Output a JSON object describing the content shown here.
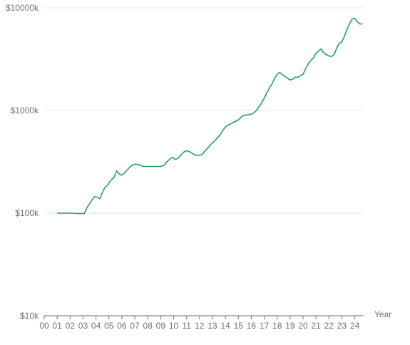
{
  "chart_data": {
    "type": "line",
    "title": "",
    "xlabel": "Year",
    "ylabel": "",
    "yscale": "log",
    "ylim": [
      10,
      10000
    ],
    "xlim": [
      0,
      24.6
    ],
    "grid": "horizontal",
    "colors": {
      "line": "#27a35a",
      "grid": "#e6e6e6",
      "axis": "#6e7079"
    },
    "y_ticks": [
      {
        "value": 10,
        "label": "$10k"
      },
      {
        "value": 100,
        "label": "$100k"
      },
      {
        "value": 1000,
        "label": "$1000k"
      },
      {
        "value": 10000,
        "label": "$10000k"
      }
    ],
    "x_ticks": [
      "00",
      "01",
      "02",
      "03",
      "04",
      "05",
      "06",
      "07",
      "08",
      "09",
      "10",
      "11",
      "12",
      "13",
      "14",
      "15",
      "16",
      "17",
      "18",
      "19",
      "20",
      "21",
      "22",
      "23",
      "24"
    ],
    "series": [
      {
        "values": [
          [
            1.0,
            100
          ],
          [
            2.0,
            100
          ],
          [
            2.6,
            99
          ],
          [
            3.1,
            99
          ],
          [
            3.3,
            113
          ],
          [
            3.5,
            123
          ],
          [
            3.7,
            135
          ],
          [
            3.9,
            145
          ],
          [
            4.1,
            143
          ],
          [
            4.3,
            138
          ],
          [
            4.5,
            160
          ],
          [
            4.7,
            178
          ],
          [
            4.9,
            188
          ],
          [
            5.1,
            205
          ],
          [
            5.4,
            225
          ],
          [
            5.6,
            258
          ],
          [
            5.8,
            240
          ],
          [
            6.0,
            234
          ],
          [
            6.2,
            246
          ],
          [
            6.4,
            262
          ],
          [
            6.6,
            280
          ],
          [
            6.8,
            292
          ],
          [
            7.0,
            300
          ],
          [
            7.2,
            298
          ],
          [
            7.4,
            295
          ],
          [
            7.6,
            285
          ],
          [
            7.9,
            285
          ],
          [
            8.5,
            285
          ],
          [
            9.0,
            285
          ],
          [
            9.3,
            295
          ],
          [
            9.5,
            318
          ],
          [
            9.7,
            335
          ],
          [
            9.9,
            350
          ],
          [
            10.1,
            335
          ],
          [
            10.3,
            340
          ],
          [
            10.5,
            362
          ],
          [
            10.8,
            395
          ],
          [
            11.0,
            405
          ],
          [
            11.2,
            398
          ],
          [
            11.4,
            385
          ],
          [
            11.6,
            370
          ],
          [
            11.9,
            365
          ],
          [
            12.2,
            372
          ],
          [
            12.4,
            400
          ],
          [
            12.7,
            440
          ],
          [
            12.9,
            470
          ],
          [
            13.2,
            510
          ],
          [
            13.4,
            545
          ],
          [
            13.6,
            580
          ],
          [
            13.8,
            640
          ],
          [
            14.0,
            690
          ],
          [
            14.2,
            720
          ],
          [
            14.5,
            750
          ],
          [
            14.7,
            780
          ],
          [
            14.9,
            790
          ],
          [
            15.1,
            830
          ],
          [
            15.3,
            880
          ],
          [
            15.5,
            900
          ],
          [
            15.8,
            910
          ],
          [
            16.0,
            920
          ],
          [
            16.2,
            950
          ],
          [
            16.4,
            1000
          ],
          [
            16.6,
            1090
          ],
          [
            16.8,
            1180
          ],
          [
            17.0,
            1320
          ],
          [
            17.2,
            1480
          ],
          [
            17.4,
            1650
          ],
          [
            17.6,
            1820
          ],
          [
            17.8,
            2050
          ],
          [
            18.0,
            2250
          ],
          [
            18.2,
            2350
          ],
          [
            18.4,
            2240
          ],
          [
            18.6,
            2150
          ],
          [
            18.8,
            2060
          ],
          [
            19.0,
            1980
          ],
          [
            19.2,
            2020
          ],
          [
            19.4,
            2120
          ],
          [
            19.6,
            2100
          ],
          [
            19.8,
            2180
          ],
          [
            20.0,
            2250
          ],
          [
            20.2,
            2550
          ],
          [
            20.4,
            2850
          ],
          [
            20.6,
            3080
          ],
          [
            20.8,
            3250
          ],
          [
            21.0,
            3600
          ],
          [
            21.2,
            3800
          ],
          [
            21.4,
            3980
          ],
          [
            21.6,
            3650
          ],
          [
            21.8,
            3500
          ],
          [
            22.0,
            3400
          ],
          [
            22.2,
            3350
          ],
          [
            22.4,
            3500
          ],
          [
            22.6,
            4050
          ],
          [
            22.8,
            4500
          ],
          [
            23.0,
            4650
          ],
          [
            23.2,
            5300
          ],
          [
            23.4,
            6200
          ],
          [
            23.6,
            7000
          ],
          [
            23.8,
            7800
          ],
          [
            24.0,
            7900
          ],
          [
            24.2,
            7300
          ],
          [
            24.4,
            6950
          ],
          [
            24.6,
            7000
          ]
        ]
      }
    ]
  }
}
